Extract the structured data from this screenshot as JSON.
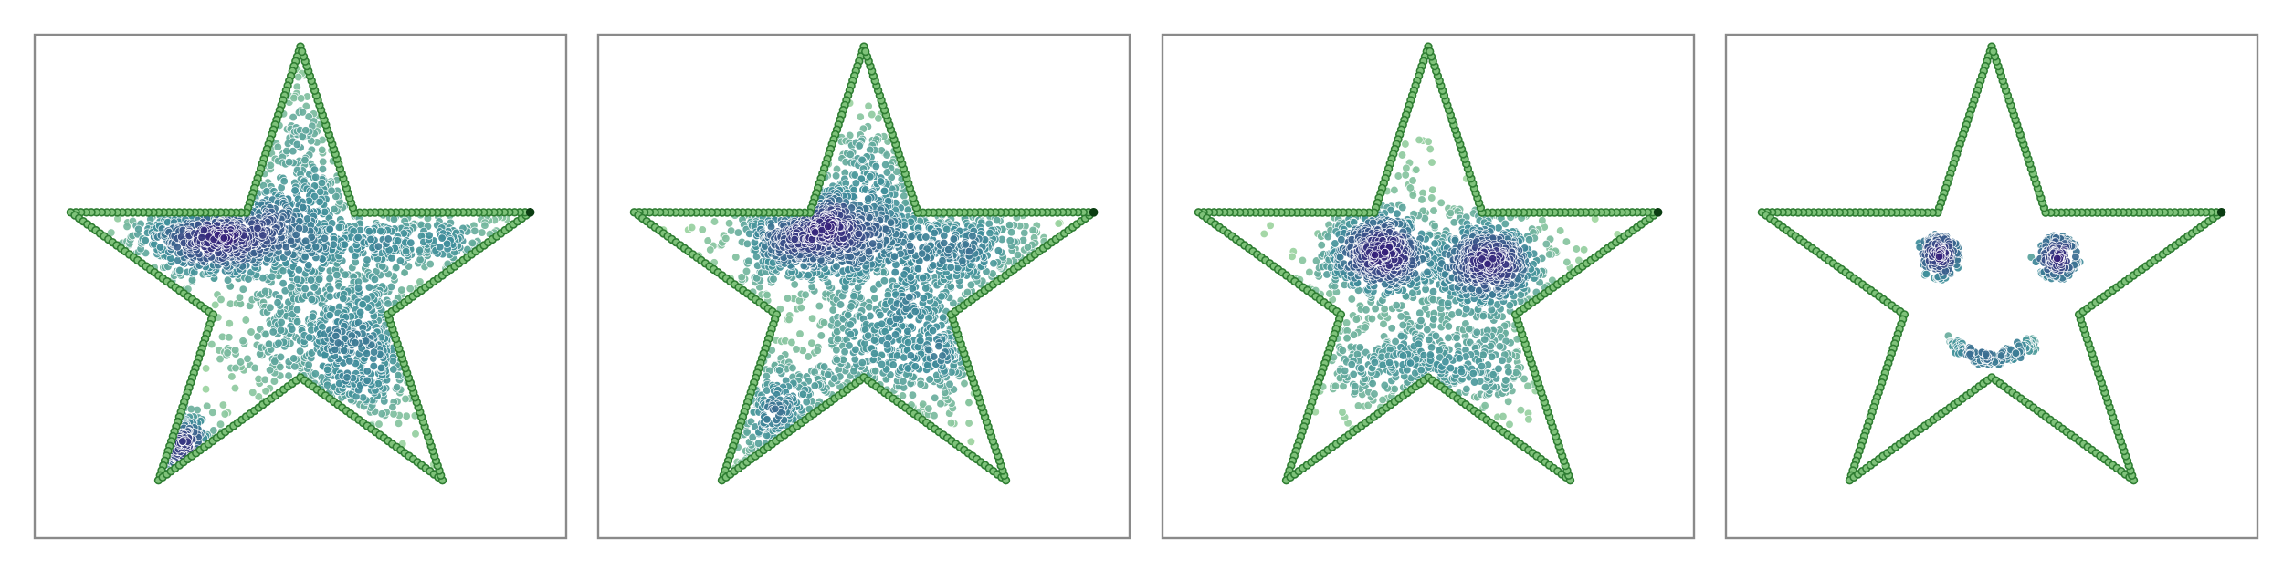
{
  "figure": {
    "panel_count": 4,
    "grid": false,
    "axis_ticks": false,
    "colors": {
      "frame": "#8a8a8a",
      "star_outline_fill": "#7fc27a",
      "star_outline_edge": "#2e7d32",
      "star_tip_marker": "#0b3d12",
      "density_low": "#a6dba0",
      "density_mid": "#3f8f9b",
      "density_high": "#35207a",
      "point_edge": "#ffffff"
    }
  },
  "chart_data": [
    {
      "type": "scatter",
      "title": "",
      "xlabel": "",
      "ylabel": "",
      "xlim": [
        -1.1,
        1.1
      ],
      "ylim": [
        -1.05,
        1.05
      ],
      "star_outline": {
        "outer_radius": 1.0,
        "inner_radius": 0.38,
        "tips": 5,
        "points_per_edge": 34
      },
      "clusters": [
        {
          "x": -0.33,
          "y": 0.22,
          "sx": 0.18,
          "sy": 0.1,
          "n": 620
        },
        {
          "x": 0.22,
          "y": -0.25,
          "sx": 0.2,
          "sy": 0.18,
          "n": 520
        },
        {
          "x": 0.45,
          "y": 0.2,
          "sx": 0.28,
          "sy": 0.08,
          "n": 300
        },
        {
          "x": -0.55,
          "y": -0.72,
          "sx": 0.12,
          "sy": 0.1,
          "n": 180
        },
        {
          "x": 0.0,
          "y": 0.45,
          "sx": 0.1,
          "sy": 0.28,
          "n": 250
        },
        {
          "x": -0.05,
          "y": -0.05,
          "sx": 0.45,
          "sy": 0.4,
          "n": 260
        }
      ]
    },
    {
      "type": "scatter",
      "title": "",
      "xlabel": "",
      "ylabel": "",
      "xlim": [
        -1.1,
        1.1
      ],
      "ylim": [
        -1.05,
        1.05
      ],
      "star_outline": {
        "outer_radius": 1.0,
        "inner_radius": 0.38,
        "tips": 5,
        "points_per_edge": 34
      },
      "clusters": [
        {
          "x": -0.22,
          "y": 0.22,
          "sx": 0.16,
          "sy": 0.1,
          "n": 560
        },
        {
          "x": 0.22,
          "y": -0.18,
          "sx": 0.2,
          "sy": 0.2,
          "n": 520
        },
        {
          "x": 0.38,
          "y": 0.18,
          "sx": 0.22,
          "sy": 0.09,
          "n": 300
        },
        {
          "x": -0.35,
          "y": -0.55,
          "sx": 0.18,
          "sy": 0.14,
          "n": 220
        },
        {
          "x": 0.05,
          "y": 0.42,
          "sx": 0.12,
          "sy": 0.18,
          "n": 220
        },
        {
          "x": -0.05,
          "y": -0.05,
          "sx": 0.45,
          "sy": 0.38,
          "n": 240
        }
      ]
    },
    {
      "type": "scatter",
      "title": "",
      "xlabel": "",
      "ylabel": "",
      "xlim": [
        -1.1,
        1.1
      ],
      "ylim": [
        -1.05,
        1.05
      ],
      "star_outline": {
        "outer_radius": 1.0,
        "inner_radius": 0.38,
        "tips": 5,
        "points_per_edge": 34
      },
      "clusters": [
        {
          "x": -0.2,
          "y": 0.14,
          "sx": 0.11,
          "sy": 0.09,
          "n": 520
        },
        {
          "x": 0.27,
          "y": 0.1,
          "sx": 0.12,
          "sy": 0.1,
          "n": 500
        },
        {
          "x": 0.02,
          "y": -0.35,
          "sx": 0.26,
          "sy": 0.12,
          "n": 380
        },
        {
          "x": 0.0,
          "y": 0.0,
          "sx": 0.38,
          "sy": 0.3,
          "n": 300
        }
      ]
    },
    {
      "type": "scatter",
      "title": "",
      "xlabel": "",
      "ylabel": "",
      "xlim": [
        -1.1,
        1.1
      ],
      "ylim": [
        -1.05,
        1.05
      ],
      "star_outline": {
        "outer_radius": 1.0,
        "inner_radius": 0.38,
        "tips": 5,
        "points_per_edge": 34
      },
      "face": {
        "left_eye": {
          "x": -0.22,
          "y": 0.12,
          "core_sd": 0.035,
          "ring_radius": 0.1
        },
        "right_eye": {
          "x": 0.27,
          "y": 0.12,
          "core_sd": 0.035,
          "ring_radius": 0.1
        },
        "smile": {
          "x": 0.0,
          "y": -0.22,
          "width": 0.36,
          "depth": 0.08
        }
      }
    }
  ]
}
